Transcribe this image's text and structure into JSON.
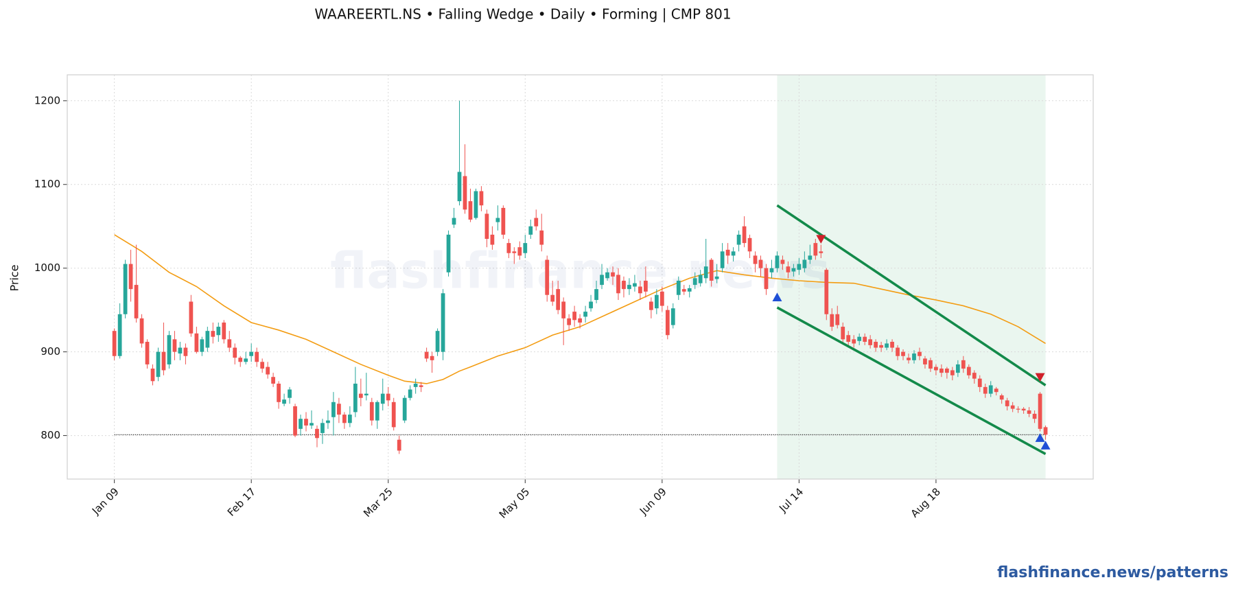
{
  "chart_data": {
    "type": "candlestick",
    "title": "WAAREERTL.NS  •  Falling Wedge  •  Daily  •  Forming  |  CMP 801",
    "y_label": "Price",
    "watermark": "flashfinance.news",
    "footer": "flashfinance.news/patterns",
    "categories": [
      "Jan 09",
      null,
      null,
      null,
      null,
      null,
      null,
      null,
      null,
      null,
      null,
      null,
      null,
      null,
      null,
      null,
      null,
      null,
      null,
      null,
      null,
      null,
      null,
      null,
      null,
      "Feb 17",
      null,
      null,
      null,
      null,
      null,
      null,
      null,
      null,
      null,
      null,
      null,
      null,
      null,
      null,
      null,
      null,
      null,
      null,
      null,
      null,
      null,
      null,
      null,
      null,
      "Mar 25",
      null,
      null,
      null,
      null,
      null,
      null,
      null,
      null,
      null,
      null,
      null,
      null,
      null,
      null,
      null,
      null,
      null,
      null,
      null,
      null,
      null,
      null,
      null,
      null,
      "May 05",
      null,
      null,
      null,
      null,
      null,
      null,
      null,
      null,
      null,
      null,
      null,
      null,
      null,
      null,
      null,
      null,
      null,
      null,
      null,
      null,
      null,
      null,
      null,
      null,
      "Jun 09",
      null,
      null,
      null,
      null,
      null,
      null,
      null,
      null,
      null,
      null,
      null,
      null,
      null,
      null,
      null,
      null,
      null,
      null,
      null,
      null,
      null,
      null,
      null,
      null,
      "Jul 14",
      null,
      null,
      null,
      null,
      null,
      null,
      null,
      null,
      null,
      null,
      null,
      null,
      null,
      null,
      null,
      null,
      null,
      null,
      null,
      null,
      null,
      null,
      null,
      null,
      "Aug 18",
      null,
      null,
      null,
      null,
      null,
      null,
      null,
      null,
      null,
      null,
      null,
      null,
      null,
      null,
      null,
      null,
      null,
      null,
      null,
      null
    ],
    "open": [
      925,
      895,
      945,
      1005,
      980,
      940,
      912,
      880,
      870,
      900,
      885,
      915,
      898,
      905,
      960,
      922,
      900,
      905,
      925,
      920,
      935,
      915,
      905,
      893,
      888,
      895,
      900,
      888,
      882,
      870,
      862,
      838,
      845,
      835,
      808,
      820,
      812,
      808,
      803,
      815,
      822,
      838,
      825,
      815,
      828,
      850,
      848,
      840,
      818,
      838,
      850,
      840,
      795,
      818,
      845,
      858,
      860,
      900,
      895,
      900,
      900,
      995,
      1052,
      1080,
      1110,
      1080,
      1060,
      1092,
      1065,
      1040,
      1055,
      1072,
      1030,
      1020,
      1025,
      1018,
      1040,
      1060,
      1045,
      1010,
      968,
      975,
      960,
      940,
      948,
      940,
      942,
      952,
      962,
      980,
      988,
      995,
      992,
      985,
      975,
      978,
      978,
      985,
      960,
      952,
      972,
      950,
      932,
      968,
      975,
      972,
      980,
      982,
      988,
      1010,
      987,
      1000,
      1022,
      1015,
      1028,
      1050,
      1036,
      1015,
      1010,
      1000,
      995,
      1000,
      1010,
      1002,
      996,
      998,
      1000,
      1010,
      1030,
      1020,
      998,
      945,
      945,
      930,
      920,
      915,
      913,
      918,
      915,
      912,
      908,
      905,
      912,
      905,
      900,
      893,
      890,
      900,
      892,
      890,
      882,
      880,
      880,
      878,
      875,
      890,
      882,
      875,
      868,
      858,
      850,
      856,
      848,
      842,
      836,
      832,
      832,
      830,
      826,
      850,
      810
    ],
    "high": [
      928,
      958,
      1010,
      1022,
      1028,
      945,
      915,
      885,
      905,
      935,
      925,
      925,
      912,
      910,
      968,
      930,
      918,
      930,
      935,
      935,
      938,
      925,
      910,
      895,
      900,
      910,
      905,
      892,
      888,
      875,
      865,
      850,
      858,
      838,
      825,
      828,
      830,
      812,
      820,
      830,
      852,
      845,
      828,
      835,
      882,
      868,
      875,
      845,
      842,
      868,
      858,
      845,
      800,
      848,
      860,
      868,
      864,
      905,
      900,
      928,
      975,
      1045,
      1072,
      1200,
      1148,
      1095,
      1095,
      1098,
      1070,
      1050,
      1075,
      1075,
      1035,
      1025,
      1032,
      1040,
      1058,
      1070,
      1065,
      1015,
      985,
      985,
      965,
      945,
      955,
      945,
      955,
      968,
      985,
      1005,
      1000,
      1002,
      1000,
      990,
      988,
      992,
      985,
      1002,
      965,
      975,
      978,
      955,
      958,
      990,
      980,
      980,
      995,
      998,
      1035,
      1012,
      1005,
      1030,
      1030,
      1025,
      1045,
      1062,
      1040,
      1020,
      1015,
      1005,
      1010,
      1020,
      1015,
      1008,
      1005,
      1012,
      1020,
      1028,
      1035,
      1028,
      1000,
      952,
      955,
      935,
      925,
      920,
      922,
      922,
      920,
      915,
      912,
      915,
      915,
      908,
      903,
      898,
      902,
      905,
      895,
      893,
      885,
      885,
      882,
      882,
      890,
      895,
      885,
      878,
      872,
      862,
      865,
      858,
      850,
      845,
      840,
      835,
      834,
      834,
      830,
      852,
      812
    ],
    "low": [
      890,
      892,
      940,
      960,
      935,
      905,
      880,
      860,
      865,
      872,
      880,
      890,
      890,
      885,
      918,
      898,
      895,
      900,
      910,
      912,
      910,
      900,
      885,
      882,
      885,
      888,
      882,
      875,
      868,
      858,
      832,
      835,
      838,
      798,
      800,
      805,
      808,
      786,
      790,
      808,
      800,
      815,
      808,
      810,
      822,
      835,
      842,
      812,
      808,
      830,
      835,
      806,
      778,
      815,
      842,
      850,
      852,
      888,
      875,
      895,
      890,
      990,
      1048,
      1075,
      1065,
      1055,
      1058,
      1068,
      1025,
      1022,
      1045,
      1035,
      1012,
      1005,
      1010,
      1012,
      1035,
      1045,
      1020,
      960,
      955,
      945,
      908,
      925,
      930,
      928,
      935,
      948,
      958,
      975,
      985,
      980,
      962,
      965,
      968,
      972,
      962,
      965,
      940,
      945,
      948,
      915,
      928,
      962,
      968,
      965,
      975,
      978,
      982,
      978,
      982,
      995,
      1005,
      1008,
      1020,
      1025,
      1012,
      995,
      990,
      968,
      988,
      995,
      998,
      988,
      990,
      992,
      995,
      1005,
      1010,
      1012,
      938,
      925,
      928,
      910,
      908,
      905,
      908,
      908,
      904,
      900,
      900,
      902,
      900,
      890,
      890,
      886,
      886,
      890,
      880,
      876,
      872,
      870,
      868,
      866,
      870,
      875,
      868,
      862,
      852,
      845,
      846,
      848,
      838,
      830,
      828,
      827,
      826,
      822,
      815,
      805,
      795
    ],
    "close": [
      895,
      945,
      1005,
      975,
      940,
      910,
      885,
      865,
      900,
      878,
      920,
      900,
      905,
      895,
      922,
      900,
      915,
      925,
      918,
      930,
      915,
      905,
      893,
      888,
      892,
      900,
      888,
      880,
      873,
      862,
      840,
      843,
      855,
      800,
      820,
      812,
      815,
      797,
      815,
      818,
      840,
      825,
      815,
      825,
      862,
      845,
      850,
      818,
      840,
      850,
      842,
      810,
      782,
      845,
      855,
      862,
      858,
      892,
      890,
      925,
      970,
      1040,
      1060,
      1115,
      1070,
      1058,
      1092,
      1075,
      1035,
      1028,
      1060,
      1040,
      1018,
      1018,
      1015,
      1030,
      1050,
      1050,
      1028,
      968,
      960,
      950,
      940,
      932,
      938,
      935,
      948,
      960,
      975,
      992,
      995,
      990,
      970,
      975,
      980,
      982,
      970,
      972,
      950,
      968,
      955,
      920,
      952,
      985,
      972,
      976,
      988,
      992,
      1002,
      985,
      990,
      1020,
      1015,
      1020,
      1040,
      1030,
      1020,
      1005,
      1000,
      975,
      1000,
      1015,
      1005,
      995,
      1000,
      1005,
      1010,
      1015,
      1015,
      1018,
      945,
      930,
      932,
      915,
      912,
      910,
      918,
      912,
      908,
      905,
      905,
      910,
      905,
      895,
      895,
      890,
      898,
      895,
      885,
      880,
      878,
      875,
      875,
      872,
      885,
      880,
      872,
      868,
      858,
      850,
      860,
      852,
      843,
      835,
      832,
      831,
      830,
      826,
      820,
      808,
      801
    ],
    "up_color": "#26a69a",
    "down_color": "#ef5350",
    "xlim": [
      -8.6,
      178.7
    ],
    "ylim": [
      748,
      1231
    ],
    "yticks": [
      800,
      900,
      1000,
      1100,
      1200
    ],
    "grid": true,
    "ma": {
      "color": "#f39c12",
      "x": [
        0,
        5,
        10,
        15,
        20,
        25,
        30,
        35,
        40,
        45,
        50,
        53,
        57,
        60,
        63,
        65,
        70,
        75,
        80,
        85,
        90,
        95,
        100,
        105,
        110,
        115,
        120,
        125,
        130,
        135,
        140,
        145,
        150,
        155,
        160,
        165,
        170
      ],
      "values": [
        1040,
        1020,
        995,
        978,
        955,
        935,
        926,
        915,
        900,
        885,
        872,
        865,
        862,
        867,
        877,
        882,
        895,
        905,
        920,
        930,
        945,
        960,
        975,
        988,
        997,
        992,
        988,
        985,
        983,
        982,
        975,
        968,
        962,
        955,
        945,
        930,
        910
      ]
    },
    "highlight": {
      "x": [
        121,
        170
      ],
      "color": "#e3f3ea"
    },
    "wedge": {
      "x": [
        121,
        170
      ],
      "upper": [
        1075,
        860
      ],
      "lower": [
        953,
        778
      ],
      "color": "#138a4a"
    },
    "cmp_line": {
      "value": 801,
      "x": [
        0,
        170
      ],
      "color": "#444444"
    },
    "buy_markers": {
      "x": [
        121,
        169,
        170
      ],
      "values": [
        965,
        797,
        788
      ],
      "color": "#1f4fd6"
    },
    "sell_markers": {
      "x": [
        129,
        169
      ],
      "values": [
        1035,
        870
      ],
      "color": "#d0202a"
    }
  }
}
